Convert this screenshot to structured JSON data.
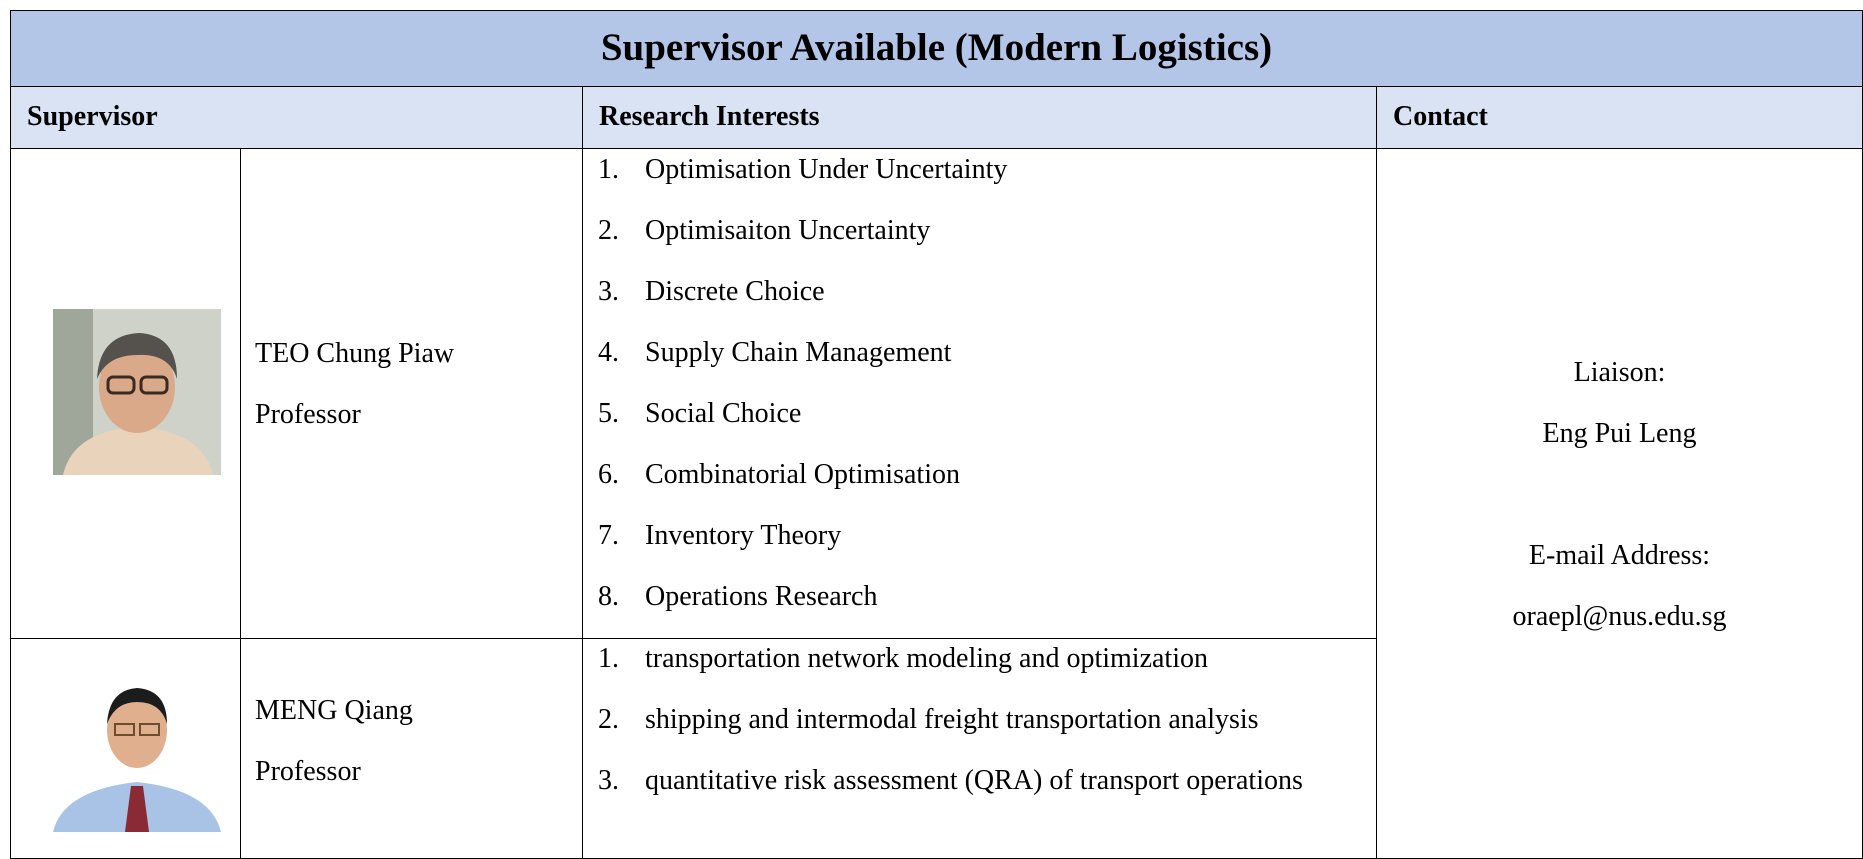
{
  "header": {
    "title": "Supervisor Available (Modern Logistics)"
  },
  "columns": [
    "Supervisor",
    "Research Interests",
    "Contact"
  ],
  "supervisors": [
    {
      "name": "TEO Chung Piaw",
      "position": "Professor",
      "interests": [
        {
          "number": "1.",
          "text": "Optimisation Under Uncertainty"
        },
        {
          "number": "2.",
          "text": "Optimisaiton Uncertainty"
        },
        {
          "number": "3.",
          "text": "Discrete Choice"
        },
        {
          "number": "4.",
          "text": "Supply Chain Management"
        },
        {
          "number": "5.",
          "text": "Social Choice"
        },
        {
          "number": "6.",
          "text": "Combinatorial Optimisation"
        },
        {
          "number": "7.",
          "text": "Inventory Theory"
        },
        {
          "number": "8.",
          "text": "Operations Research"
        }
      ]
    },
    {
      "name": "MENG Qiang",
      "position": "Professor",
      "interests": [
        {
          "number": "1.",
          "text": "transportation network modeling and optimization"
        },
        {
          "number": "2.",
          "text": "shipping and intermodal freight transportation analysis"
        },
        {
          "number": "3.",
          "text": "quantitative risk assessment (QRA) of transport operations"
        }
      ]
    }
  ],
  "contact": {
    "liaison_label": "Liaison:",
    "liaison": "Eng Pui Leng",
    "email_label": "E-mail Address:",
    "email": "oraepl@nus.edu.sg"
  }
}
